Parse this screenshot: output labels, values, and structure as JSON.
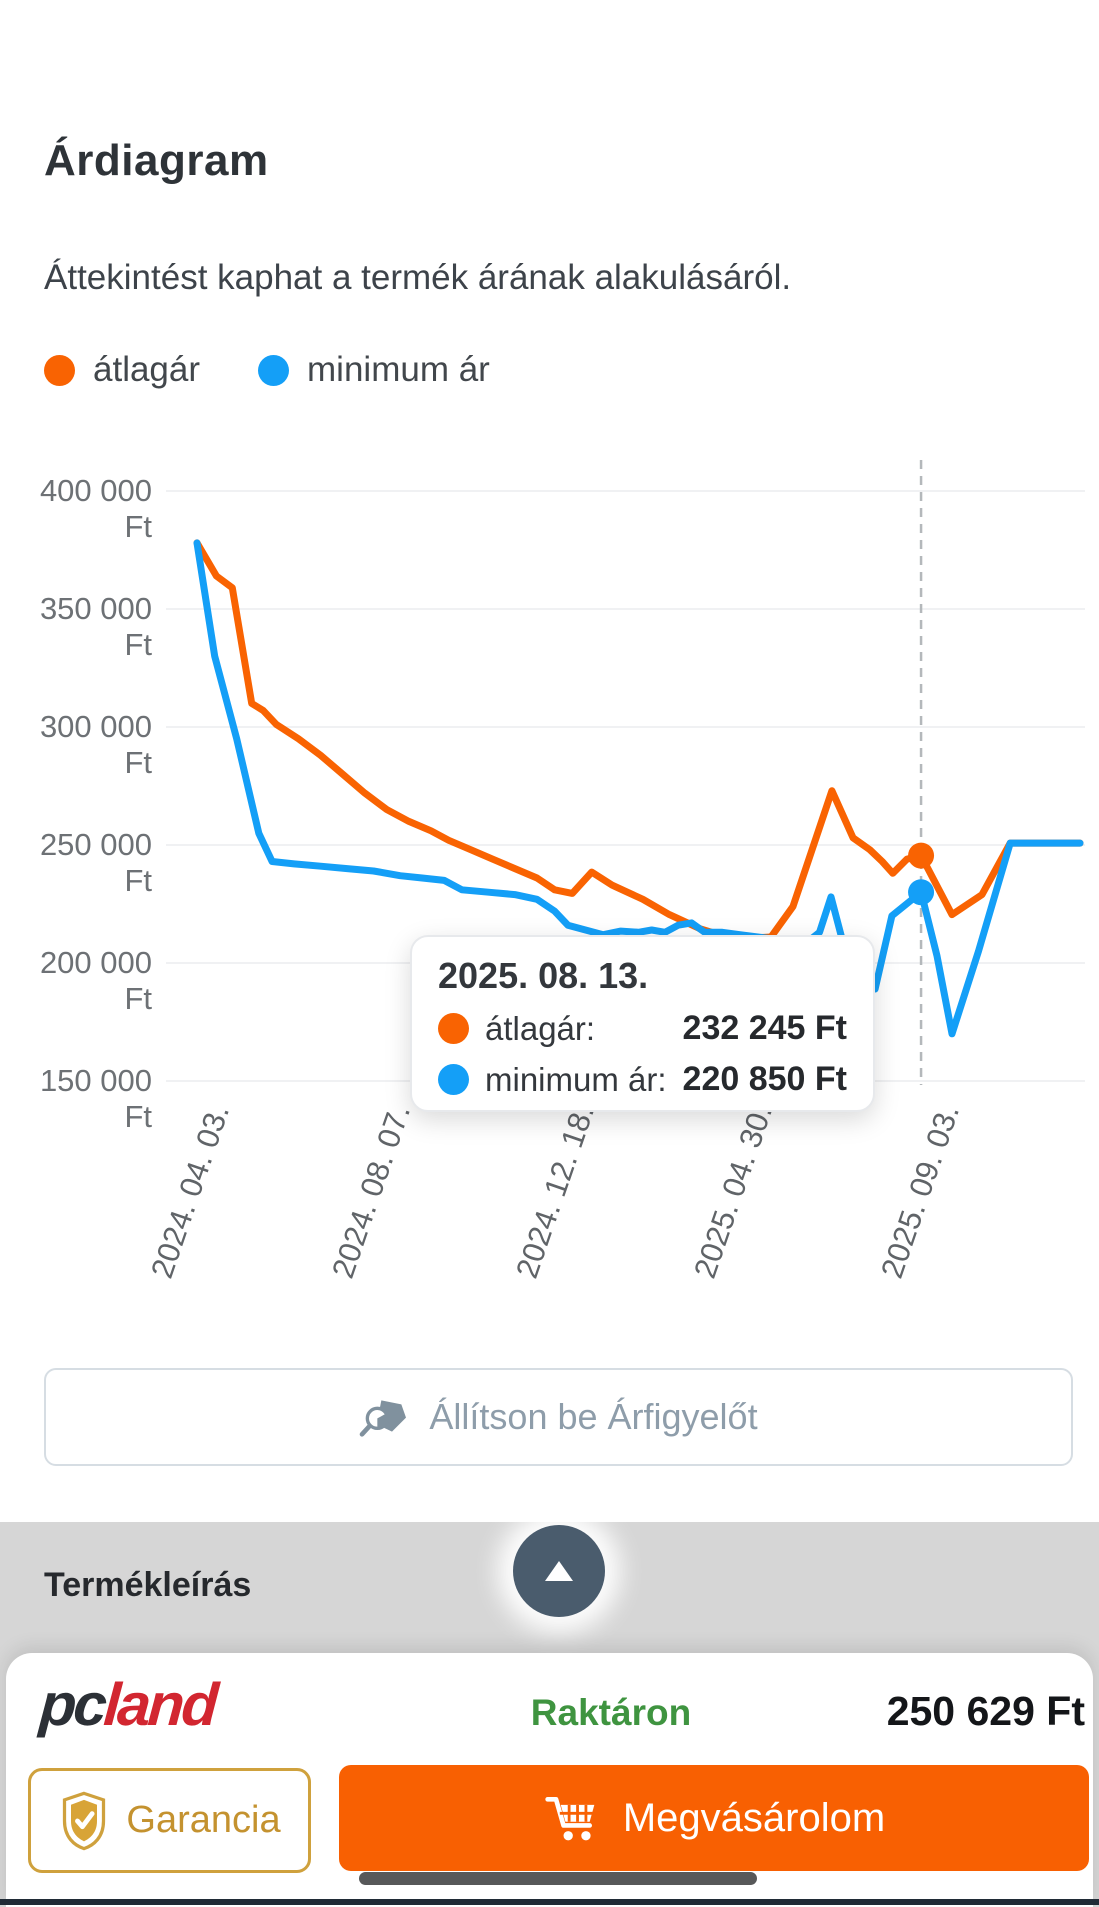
{
  "header": {
    "title": "Árdiagram",
    "subtitle": "Áttekintést kaphat a termék árának alakulásáról."
  },
  "legend": [
    {
      "label": "átlagár",
      "color": "#f96302"
    },
    {
      "label": "minimum ár",
      "color": "#149ff7"
    }
  ],
  "chart_data": {
    "type": "line",
    "title": "Árdiagram",
    "ylabel": "Ft",
    "ylim": [
      150000,
      400000
    ],
    "grid": true,
    "legend_position": "top-left",
    "y_ticks": [
      {
        "label": "400 000 Ft",
        "value": 400000
      },
      {
        "label": "350 000 Ft",
        "value": 350000
      },
      {
        "label": "300 000 Ft",
        "value": 300000
      },
      {
        "label": "250 000 Ft",
        "value": 250000
      },
      {
        "label": "200 000 Ft",
        "value": 200000
      },
      {
        "label": "150 000 Ft",
        "value": 150000
      }
    ],
    "x_ticks": [
      {
        "label": "2024. 04. 03.",
        "f": 0
      },
      {
        "label": "2024. 08. 07.",
        "f": 0.205
      },
      {
        "label": "2024. 12. 18.",
        "f": 0.413
      },
      {
        "label": "2025. 04. 30.",
        "f": 0.615
      },
      {
        "label": "2025. 09. 03.",
        "f": 0.827
      }
    ],
    "series": [
      {
        "name": "átlagár",
        "color": "#f96302",
        "points": [
          [
            0,
            378000
          ],
          [
            0.022,
            364000
          ],
          [
            0.04,
            359000
          ],
          [
            0.062,
            310000
          ],
          [
            0.075,
            307000
          ],
          [
            0.09,
            301000
          ],
          [
            0.115,
            295000
          ],
          [
            0.14,
            288000
          ],
          [
            0.165,
            280000
          ],
          [
            0.19,
            272000
          ],
          [
            0.215,
            265000
          ],
          [
            0.24,
            260000
          ],
          [
            0.265,
            256000
          ],
          [
            0.285,
            252000
          ],
          [
            0.31,
            248000
          ],
          [
            0.335,
            244000
          ],
          [
            0.36,
            240000
          ],
          [
            0.385,
            236000
          ],
          [
            0.405,
            231000
          ],
          [
            0.425,
            229500
          ],
          [
            0.447,
            238500
          ],
          [
            0.47,
            233000
          ],
          [
            0.505,
            227000
          ],
          [
            0.535,
            220500
          ],
          [
            0.57,
            214500
          ],
          [
            0.6,
            211000
          ],
          [
            0.625,
            210500
          ],
          [
            0.65,
            211000
          ],
          [
            0.675,
            224000
          ],
          [
            0.719,
            273000
          ],
          [
            0.743,
            253000
          ],
          [
            0.762,
            248000
          ],
          [
            0.776,
            243000
          ],
          [
            0.788,
            238000
          ],
          [
            0.804,
            244000
          ],
          [
            0.82,
            245500
          ],
          [
            0.855,
            220500
          ],
          [
            0.889,
            229000
          ],
          [
            0.921,
            250800
          ],
          [
            0.96,
            250800
          ],
          [
            1,
            250800
          ]
        ]
      },
      {
        "name": "minimum ár",
        "color": "#149ff7",
        "points": [
          [
            0,
            378000
          ],
          [
            0.02,
            330000
          ],
          [
            0.045,
            295000
          ],
          [
            0.07,
            255000
          ],
          [
            0.085,
            243000
          ],
          [
            0.11,
            242000
          ],
          [
            0.14,
            241000
          ],
          [
            0.17,
            240000
          ],
          [
            0.2,
            239000
          ],
          [
            0.23,
            237000
          ],
          [
            0.255,
            236000
          ],
          [
            0.28,
            235000
          ],
          [
            0.3,
            231000
          ],
          [
            0.33,
            230000
          ],
          [
            0.36,
            229000
          ],
          [
            0.385,
            227000
          ],
          [
            0.405,
            222000
          ],
          [
            0.42,
            216000
          ],
          [
            0.44,
            214000
          ],
          [
            0.46,
            212000
          ],
          [
            0.48,
            213500
          ],
          [
            0.5,
            213000
          ],
          [
            0.515,
            214000
          ],
          [
            0.53,
            213000
          ],
          [
            0.545,
            216000
          ],
          [
            0.56,
            217000
          ],
          [
            0.575,
            213000
          ],
          [
            0.595,
            213000
          ],
          [
            0.615,
            212000
          ],
          [
            0.635,
            211000
          ],
          [
            0.655,
            210000
          ],
          [
            0.675,
            209000
          ],
          [
            0.695,
            210000
          ],
          [
            0.705,
            213000
          ],
          [
            0.718,
            228000
          ],
          [
            0.732,
            208000
          ],
          [
            0.748,
            198000
          ],
          [
            0.768,
            189000
          ],
          [
            0.787,
            220000
          ],
          [
            0.82,
            230000
          ],
          [
            0.838,
            203000
          ],
          [
            0.855,
            170000
          ],
          [
            0.885,
            205000
          ],
          [
            0.921,
            250800
          ],
          [
            0.96,
            250800
          ],
          [
            1,
            250800
          ]
        ]
      }
    ],
    "crosshair": {
      "f": 0.82,
      "points": [
        {
          "series": "átlagár",
          "value": 245500,
          "color": "#f96302"
        },
        {
          "series": "minimum ár",
          "value": 230000,
          "color": "#149ff7"
        }
      ]
    },
    "tooltip": {
      "date": "2025. 08. 13.",
      "rows": [
        {
          "label": "átlagár:",
          "value": "232 245 Ft",
          "color": "#f96302"
        },
        {
          "label": "minimum ár:",
          "value": "220 850 Ft",
          "color": "#149ff7"
        }
      ]
    }
  },
  "price_watch": {
    "label": "Állítson be Árfigyelőt"
  },
  "description": {
    "title": "Termékleírás"
  },
  "purchase_bar": {
    "store_pc": "pc",
    "store_land": "land",
    "stock": "Raktáron",
    "price": "250 629 Ft",
    "warranty_label": "Garancia",
    "buy_label": "Megvásárolom"
  },
  "icons": {
    "price_watch": "price-watch-magnifier-tag-icon",
    "collapse": "collapse-up-arrow-icon",
    "warranty": "shield-check-icon",
    "buy": "shopping-cart-icon"
  },
  "colors": {
    "accent_orange": "#f96302",
    "accent_blue": "#149ff7",
    "stock_green": "#3f9440",
    "warranty_gold": "#c4922f",
    "section_gray": "#d6d6d6",
    "collapse_slate": "#4a5c6d"
  }
}
